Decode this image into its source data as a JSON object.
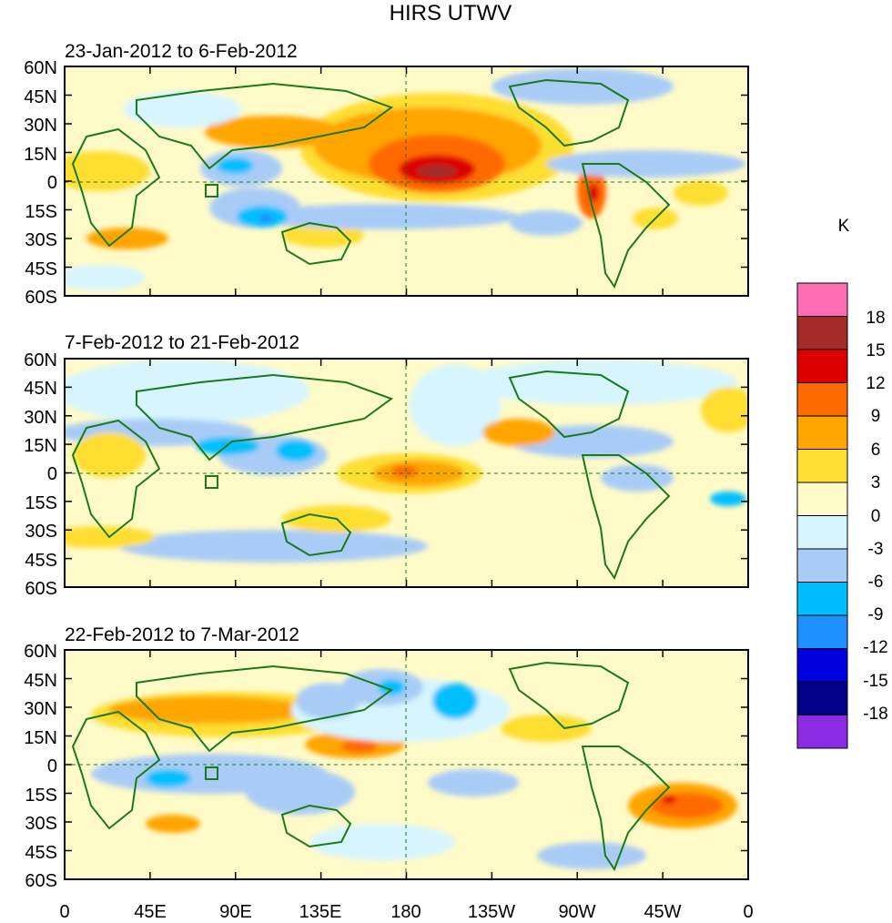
{
  "figure": {
    "title": "HIRS UTWV",
    "panels": [
      {
        "label": "23-Jan-2012 to 6-Feb-2012"
      },
      {
        "label": "7-Feb-2012 to 21-Feb-2012"
      },
      {
        "label": "22-Feb-2012 to 7-Mar-2012"
      }
    ],
    "lat_ticks": [
      "60N",
      "45N",
      "30N",
      "15N",
      "0",
      "15S",
      "30S",
      "45S",
      "60S"
    ],
    "lon_ticks": [
      "0",
      "45E",
      "90E",
      "135E",
      "180",
      "135W",
      "90W",
      "45W",
      "0"
    ],
    "colorbar": {
      "unit": "K",
      "labels": [
        "18",
        "15",
        "12",
        "9",
        "6",
        "3",
        "0",
        "-3",
        "-6",
        "-9",
        "-12",
        "-15",
        "-18"
      ],
      "colors": [
        "#ff6eb4",
        "#a52a2a",
        "#dd0000",
        "#ff6a00",
        "#ffa500",
        "#ffde33",
        "#fffbc8",
        "#d6f5ff",
        "#a9ccf7",
        "#00bfff",
        "#1e8fff",
        "#0000e0",
        "#00008b",
        "#8b2be2"
      ]
    }
  }
}
